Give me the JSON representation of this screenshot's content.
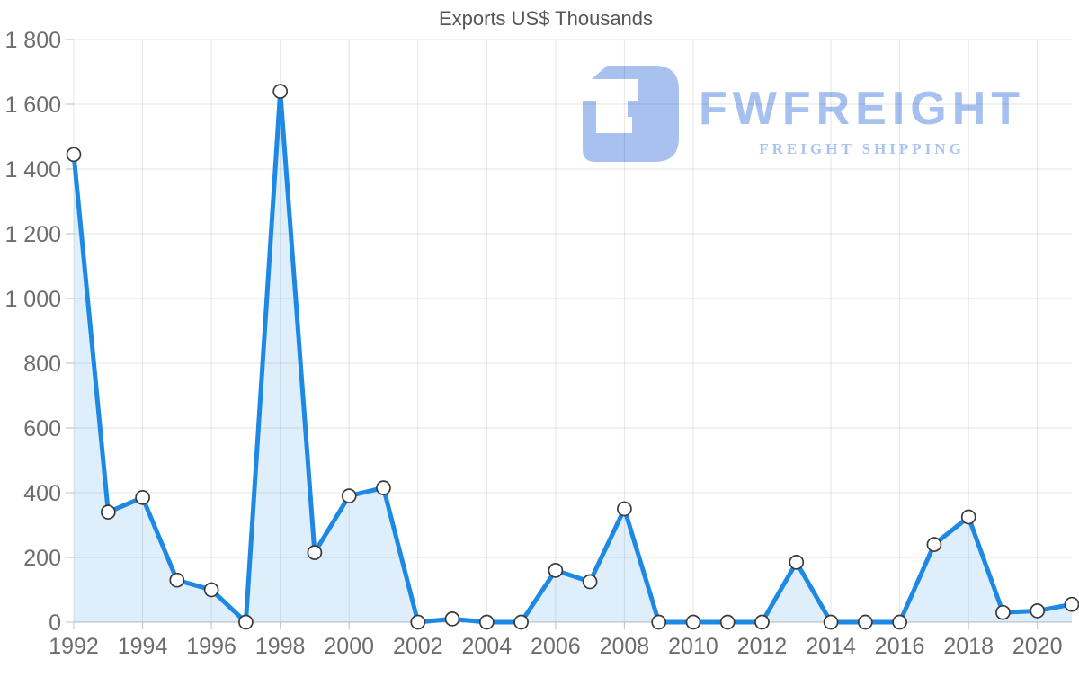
{
  "page": {
    "background": "#ffffff"
  },
  "watermark": {
    "name": "FWFREIGHT",
    "subtitle": "FREIGHT SHIPPING",
    "color": "#a8c1ef"
  },
  "chart_data": {
    "type": "area",
    "title": "Exports US$ Thousands",
    "xlabel": "",
    "ylabel": "",
    "x": [
      1992,
      1993,
      1994,
      1995,
      1996,
      1997,
      1998,
      1999,
      2000,
      2001,
      2002,
      2003,
      2004,
      2005,
      2006,
      2007,
      2008,
      2009,
      2010,
      2011,
      2012,
      2013,
      2014,
      2015,
      2016,
      2017,
      2018,
      2019,
      2020,
      2021
    ],
    "values": [
      1445,
      340,
      385,
      130,
      100,
      0,
      1640,
      215,
      390,
      415,
      0,
      10,
      0,
      0,
      160,
      125,
      350,
      0,
      0,
      0,
      0,
      185,
      0,
      0,
      0,
      240,
      325,
      30,
      35,
      55
    ],
    "xlim": [
      1992,
      2021
    ],
    "ylim": [
      0,
      1800
    ],
    "x_ticks": [
      1992,
      1994,
      1996,
      1998,
      2000,
      2002,
      2004,
      2006,
      2008,
      2010,
      2012,
      2014,
      2016,
      2018,
      2020
    ],
    "x_tick_labels": [
      "1992",
      "1994",
      "1996",
      "1998",
      "2000",
      "2002",
      "2004",
      "2006",
      "2008",
      "2010",
      "2012",
      "2014",
      "2016",
      "2018",
      "2020"
    ],
    "y_ticks": [
      0,
      200,
      400,
      600,
      800,
      1000,
      1200,
      1400,
      1600,
      1800
    ],
    "y_tick_labels": [
      "0",
      "200",
      "400",
      "600",
      "800",
      "1 000",
      "1 200",
      "1 400",
      "1 600",
      "1 800"
    ],
    "grid": true,
    "legend": "none",
    "grid_color": "rgba(0,0,0,0.10)",
    "axis_color": "#c9c9c9",
    "line_color": "#1e88e5",
    "area_color": "rgba(30,136,229,0.14)",
    "marker_fill": "#ffffff",
    "marker_stroke": "#3a3a3a"
  }
}
